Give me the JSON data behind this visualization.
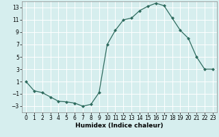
{
  "x": [
    0,
    1,
    2,
    3,
    4,
    5,
    6,
    7,
    8,
    9,
    10,
    11,
    12,
    13,
    14,
    15,
    16,
    17,
    18,
    19,
    20,
    21,
    22,
    23
  ],
  "y": [
    1,
    -0.5,
    -0.8,
    -1.5,
    -2.2,
    -2.3,
    -2.5,
    -3.0,
    -2.7,
    -0.8,
    7.0,
    9.3,
    11.0,
    11.3,
    12.5,
    13.2,
    13.7,
    13.3,
    11.3,
    9.3,
    8.0,
    5.0,
    3.0,
    3.0
  ],
  "xlabel": "Humidex (Indice chaleur)",
  "xlim": [
    -0.5,
    23.5
  ],
  "ylim": [
    -4,
    14
  ],
  "yticks": [
    -3,
    -1,
    1,
    3,
    5,
    7,
    9,
    11,
    13
  ],
  "xticks": [
    0,
    1,
    2,
    3,
    4,
    5,
    6,
    7,
    8,
    9,
    10,
    11,
    12,
    13,
    14,
    15,
    16,
    17,
    18,
    19,
    20,
    21,
    22,
    23
  ],
  "line_color": "#2e6b5e",
  "marker": "D",
  "marker_size": 2.0,
  "bg_color": "#d6eeee",
  "grid_color": "#ffffff",
  "xlabel_fontsize": 6.5,
  "tick_fontsize": 5.5
}
